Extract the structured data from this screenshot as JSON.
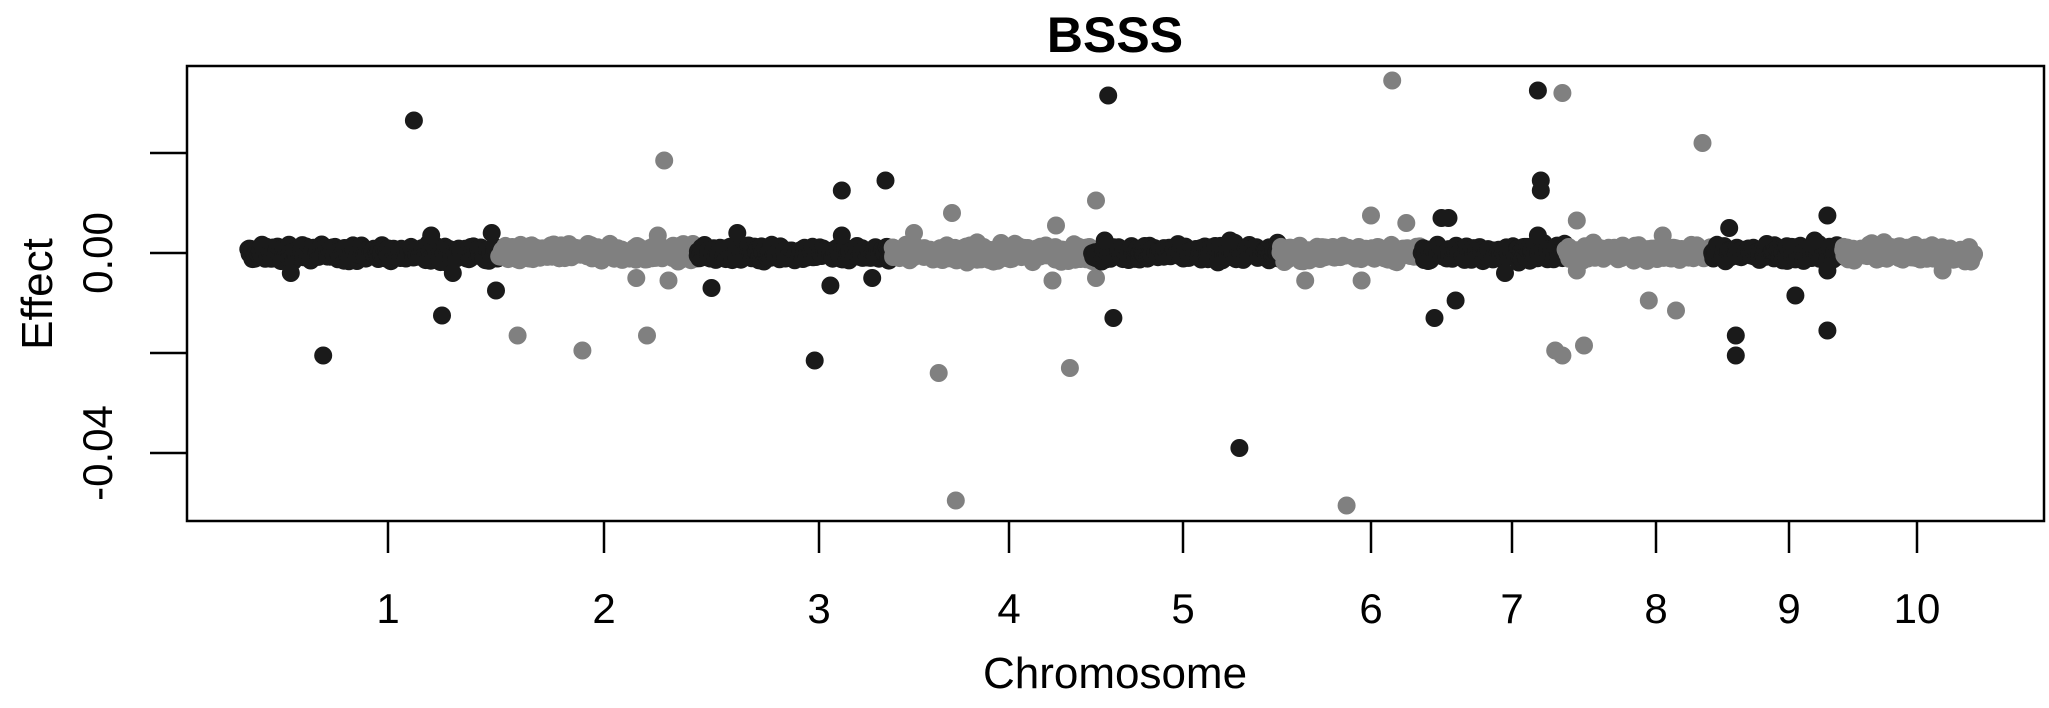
{
  "chart_data": {
    "type": "scatter",
    "title": "BSSS",
    "xlabel": "Chromosome",
    "ylabel": "Effect",
    "x_ticks": [
      "1",
      "2",
      "3",
      "4",
      "5",
      "6",
      "7",
      "8",
      "9",
      "10"
    ],
    "y_ticks": [
      "-0.04",
      "0.00"
    ],
    "ylim": [
      -0.054,
      0.038
    ],
    "grid": false,
    "legend": "none",
    "colors": {
      "odd_chromosome": "#1a1a1a",
      "even_chromosome": "#808080",
      "axis": "#000000"
    },
    "chromosomes": [
      {
        "name": "1",
        "color": "#1a1a1a",
        "outliers": [
          {
            "x": 0.7,
            "y": -0.0205
          },
          {
            "x": 1.12,
            "y": 0.0265
          },
          {
            "x": 1.25,
            "y": -0.0125
          },
          {
            "x": 1.2,
            "y": 0.0035
          },
          {
            "x": 1.48,
            "y": 0.004
          },
          {
            "x": 1.5,
            "y": -0.0075
          },
          {
            "x": 0.55,
            "y": -0.004
          },
          {
            "x": 1.3,
            "y": -0.004
          }
        ]
      },
      {
        "name": "2",
        "color": "#808080",
        "outliers": [
          {
            "x": 1.6,
            "y": -0.0165
          },
          {
            "x": 1.9,
            "y": -0.0195
          },
          {
            "x": 2.2,
            "y": -0.0165
          },
          {
            "x": 2.28,
            "y": 0.0185
          },
          {
            "x": 2.15,
            "y": -0.005
          },
          {
            "x": 2.3,
            "y": -0.0055
          },
          {
            "x": 2.25,
            "y": 0.0035
          }
        ]
      },
      {
        "name": "3",
        "color": "#1a1a1a",
        "outliers": [
          {
            "x": 2.5,
            "y": -0.007
          },
          {
            "x": 2.98,
            "y": -0.0215
          },
          {
            "x": 3.12,
            "y": 0.0125
          },
          {
            "x": 3.35,
            "y": 0.0145
          },
          {
            "x": 3.06,
            "y": -0.0065
          },
          {
            "x": 3.28,
            "y": -0.005
          },
          {
            "x": 2.62,
            "y": 0.004
          },
          {
            "x": 3.12,
            "y": 0.0035
          }
        ]
      },
      {
        "name": "4",
        "color": "#808080",
        "outliers": [
          {
            "x": 3.63,
            "y": -0.024
          },
          {
            "x": 3.7,
            "y": 0.008
          },
          {
            "x": 3.72,
            "y": -0.0495
          },
          {
            "x": 4.27,
            "y": 0.0055
          },
          {
            "x": 4.35,
            "y": -0.023
          },
          {
            "x": 4.5,
            "y": 0.0105
          },
          {
            "x": 4.25,
            "y": -0.0055
          },
          {
            "x": 4.5,
            "y": -0.005
          },
          {
            "x": 3.5,
            "y": 0.004
          }
        ]
      },
      {
        "name": "5",
        "color": "#1a1a1a",
        "outliers": [
          {
            "x": 4.57,
            "y": 0.0315
          },
          {
            "x": 4.6,
            "y": -0.013
          },
          {
            "x": 5.3,
            "y": -0.039
          },
          {
            "x": 5.25,
            "y": 0.0025
          },
          {
            "x": 4.55,
            "y": 0.0025
          }
        ]
      },
      {
        "name": "6",
        "color": "#808080",
        "outliers": [
          {
            "x": 5.87,
            "y": -0.0505
          },
          {
            "x": 6.15,
            "y": 0.0345
          },
          {
            "x": 6.0,
            "y": 0.0075
          },
          {
            "x": 6.25,
            "y": 0.006
          },
          {
            "x": 5.65,
            "y": -0.0055
          },
          {
            "x": 5.95,
            "y": -0.0055
          }
        ]
      },
      {
        "name": "7",
        "color": "#1a1a1a",
        "outliers": [
          {
            "x": 6.45,
            "y": -0.013
          },
          {
            "x": 6.6,
            "y": -0.0095
          },
          {
            "x": 6.55,
            "y": 0.007
          },
          {
            "x": 7.18,
            "y": 0.0325
          },
          {
            "x": 7.2,
            "y": 0.0145
          },
          {
            "x": 7.2,
            "y": 0.0125
          },
          {
            "x": 6.5,
            "y": 0.007
          },
          {
            "x": 7.18,
            "y": 0.0035
          },
          {
            "x": 6.95,
            "y": -0.004
          }
        ]
      },
      {
        "name": "8",
        "color": "#808080",
        "outliers": [
          {
            "x": 7.35,
            "y": 0.032
          },
          {
            "x": 7.3,
            "y": -0.0195
          },
          {
            "x": 7.35,
            "y": -0.0205
          },
          {
            "x": 7.5,
            "y": -0.0185
          },
          {
            "x": 7.45,
            "y": 0.0065
          },
          {
            "x": 7.95,
            "y": -0.0095
          },
          {
            "x": 8.15,
            "y": -0.0115
          },
          {
            "x": 8.35,
            "y": 0.022
          },
          {
            "x": 8.05,
            "y": 0.0035
          },
          {
            "x": 7.45,
            "y": -0.0035
          }
        ]
      },
      {
        "name": "9",
        "color": "#1a1a1a",
        "outliers": [
          {
            "x": 8.55,
            "y": 0.005
          },
          {
            "x": 8.6,
            "y": -0.0165
          },
          {
            "x": 8.6,
            "y": -0.0205
          },
          {
            "x": 9.05,
            "y": -0.0085
          },
          {
            "x": 9.3,
            "y": 0.0075
          },
          {
            "x": 9.3,
            "y": -0.0155
          },
          {
            "x": 9.2,
            "y": 0.0025
          },
          {
            "x": 9.3,
            "y": -0.0035
          }
        ]
      },
      {
        "name": "10",
        "color": "#808080",
        "outliers": [
          {
            "x": 10.2,
            "y": -0.0035
          }
        ]
      }
    ]
  }
}
